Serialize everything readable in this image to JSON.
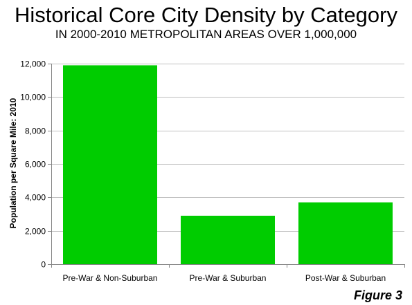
{
  "chart_data": {
    "type": "bar",
    "title": "Historical Core City Density by Category",
    "subtitle": "IN 2000-2010 METROPOLITAN AREAS OVER 1,000,000",
    "xlabel": "",
    "ylabel": "Population per Square Mile: 2010",
    "categories": [
      "Pre-War & Non-Suburban",
      "Pre-War & Suburban",
      "Post-War & Suburban"
    ],
    "values": [
      11900,
      2900,
      3700
    ],
    "ylim": [
      0,
      12000
    ],
    "yticks": [
      0,
      2000,
      4000,
      6000,
      8000,
      10000,
      12000
    ],
    "ytick_labels": [
      "0",
      "2,000",
      "4,000",
      "6,000",
      "8,000",
      "10,000",
      "12,000"
    ],
    "grid": true,
    "legend": "none",
    "bar_color": "#00cc00",
    "grid_color": "#bfbfbf",
    "axis_color": "#868686"
  },
  "figure_label": "Figure 3"
}
